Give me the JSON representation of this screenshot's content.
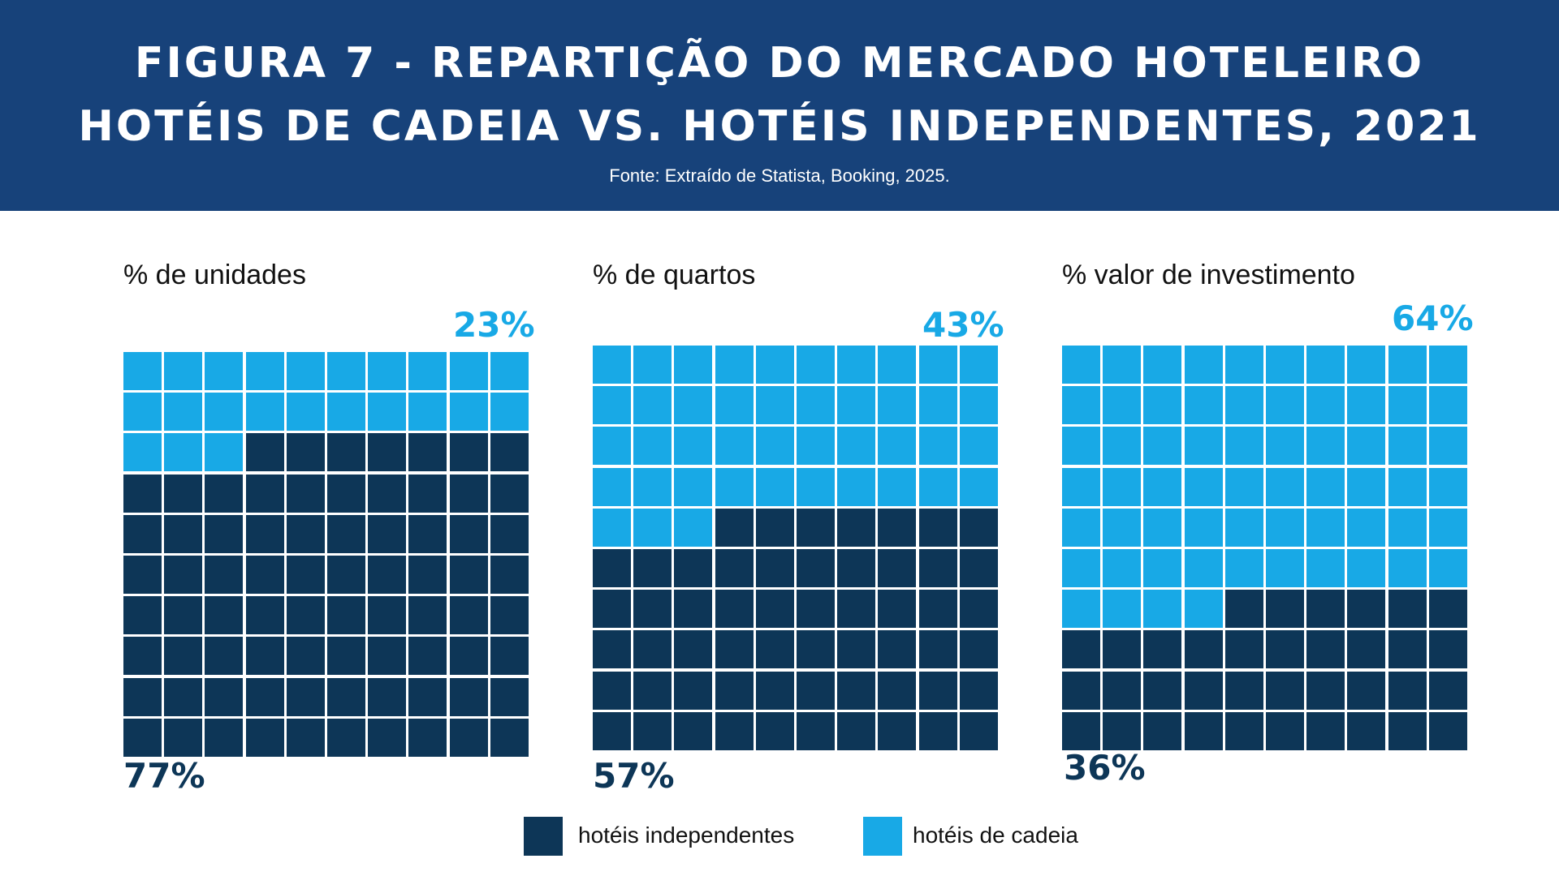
{
  "header": {
    "title_line1": "FIGURA 7 - REPARTIÇÃO DO MERCADO HOTELEIRO",
    "title_line2": "HOTÉIS DE CADEIA VS. HOTÉIS INDEPENDENTES, 2021",
    "source": "Fonte: Extraído de Statista, Booking, 2025."
  },
  "colors": {
    "header_bg": "#17427a",
    "independent": "#0d3657",
    "chain": "#18a9e6"
  },
  "chart_data": [
    {
      "type": "waffle",
      "title": "% de unidades",
      "grid": [
        10,
        10
      ],
      "series": [
        {
          "name": "hotéis independentes",
          "value": 77,
          "label": "77%"
        },
        {
          "name": "hotéis de cadeia",
          "value": 23,
          "label": "23%"
        }
      ]
    },
    {
      "type": "waffle",
      "title": "% de quartos",
      "grid": [
        10,
        10
      ],
      "series": [
        {
          "name": "hotéis independentes",
          "value": 57,
          "label": "57%"
        },
        {
          "name": "hotéis de cadeia",
          "value": 43,
          "label": "43%"
        }
      ]
    },
    {
      "type": "waffle",
      "title": "% valor de investimento",
      "grid": [
        10,
        10
      ],
      "series": [
        {
          "name": "hotéis independentes",
          "value": 36,
          "label": "36%"
        },
        {
          "name": "hotéis de cadeia",
          "value": 64,
          "label": "64%"
        }
      ]
    }
  ],
  "legend": [
    {
      "label": "hotéis independentes"
    },
    {
      "label": "hotéis de cadeia"
    }
  ]
}
